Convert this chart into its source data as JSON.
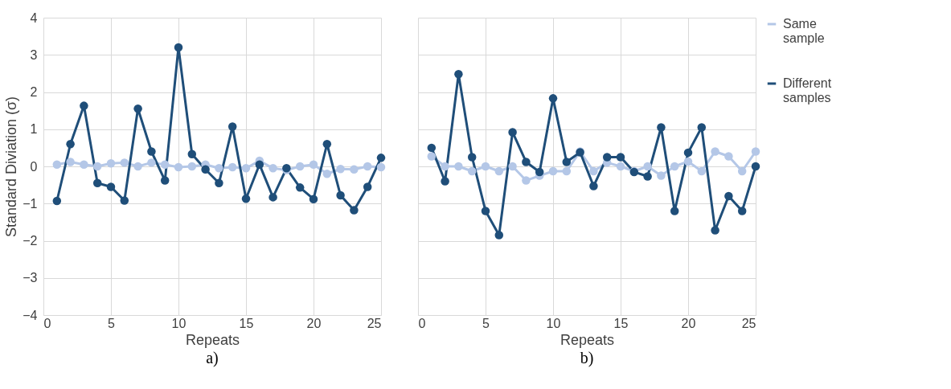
{
  "chart_data": [
    {
      "type": "line",
      "xlabel": "Repeats",
      "ylabel": "Standard Diviation (σ)",
      "annotations": [
        "a)"
      ],
      "x": [
        1,
        2,
        3,
        4,
        5,
        6,
        7,
        8,
        9,
        10,
        11,
        12,
        13,
        14,
        15,
        16,
        17,
        18,
        19,
        20,
        21,
        22,
        23,
        24,
        25
      ],
      "xlim": [
        0,
        25
      ],
      "xticks": [
        0,
        5,
        10,
        15,
        20,
        25
      ],
      "ylim": [
        -4,
        4
      ],
      "yticks": [
        -4,
        -3,
        -2,
        -1,
        0,
        1,
        2,
        3,
        4
      ],
      "grid": true,
      "marker": "circle",
      "legend": false,
      "series": [
        {
          "color": "#b4c7e7",
          "values": [
            0.05,
            0.12,
            0.05,
            0.0,
            0.08,
            0.1,
            0.0,
            0.1,
            0.05,
            -0.02,
            0.0,
            0.05,
            -0.05,
            -0.02,
            -0.05,
            0.15,
            -0.05,
            -0.1,
            0.0,
            0.05,
            -0.2,
            -0.07,
            -0.08,
            0.0,
            -0.02
          ]
        },
        {
          "color": "#1f4e79",
          "values": [
            -0.93,
            0.6,
            1.63,
            -0.45,
            -0.55,
            -0.92,
            1.55,
            0.4,
            -0.38,
            3.2,
            0.33,
            -0.08,
            -0.45,
            1.07,
            -0.87,
            0.05,
            -0.83,
            -0.05,
            -0.57,
            -0.88,
            0.6,
            -0.78,
            -1.18,
            -0.55,
            0.23
          ]
        }
      ]
    },
    {
      "type": "line",
      "xlabel": "Repeats",
      "annotations": [
        "b)"
      ],
      "x": [
        1,
        2,
        3,
        4,
        5,
        6,
        7,
        8,
        9,
        10,
        11,
        12,
        13,
        14,
        15,
        16,
        17,
        18,
        19,
        20,
        21,
        22,
        23,
        24,
        25
      ],
      "xlim": [
        0,
        25
      ],
      "xticks": [
        0,
        5,
        10,
        15,
        20,
        25
      ],
      "ylim": [
        -4,
        4
      ],
      "yticks": [
        -4,
        -3,
        -2,
        -1,
        0,
        1,
        2,
        3,
        4
      ],
      "tick_labels": "x",
      "grid": true,
      "marker": "circle",
      "legend": "right",
      "series": [
        {
          "name": "Same sample",
          "color": "#b4c7e7",
          "values": [
            0.27,
            0.0,
            0.0,
            -0.13,
            0.0,
            -0.13,
            0.0,
            -0.38,
            -0.25,
            -0.13,
            -0.13,
            0.4,
            -0.13,
            0.1,
            0.0,
            -0.13,
            0.0,
            -0.25,
            0.0,
            0.13,
            -0.13,
            0.4,
            0.27,
            -0.13,
            0.4
          ]
        },
        {
          "name": "Different samples",
          "color": "#1f4e79",
          "values": [
            0.5,
            -0.4,
            2.48,
            0.25,
            -1.2,
            -1.85,
            0.92,
            0.12,
            -0.15,
            1.83,
            0.12,
            0.38,
            -0.53,
            0.25,
            0.25,
            -0.15,
            -0.27,
            1.05,
            -1.2,
            0.37,
            1.05,
            -1.72,
            -0.8,
            -1.2,
            0.0
          ]
        }
      ]
    }
  ]
}
